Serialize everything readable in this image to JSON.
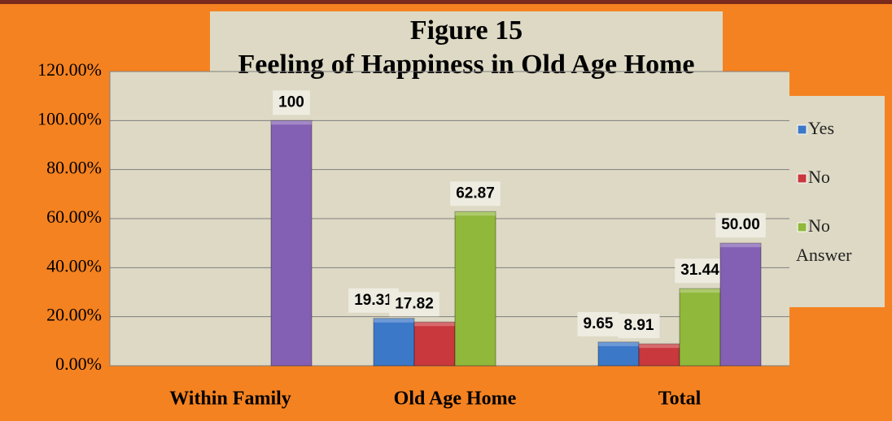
{
  "chart_data": {
    "type": "bar",
    "title": "Figure 15",
    "subtitle": "Feeling of Happiness in Old Age Home",
    "categories": [
      "Within Family",
      "Old Age Home",
      "Total"
    ],
    "series": [
      {
        "name": "Yes",
        "color": "#3c78c8",
        "values": [
          null,
          19.31,
          9.65
        ],
        "value_labels": [
          null,
          "19.31",
          "9.65"
        ]
      },
      {
        "name": "No",
        "color": "#c8383c",
        "values": [
          null,
          17.82,
          8.91
        ],
        "value_labels": [
          null,
          "17.82",
          "8.91"
        ]
      },
      {
        "name": "No Answer",
        "color": "#90b83a",
        "values": [
          null,
          62.87,
          31.44
        ],
        "value_labels": [
          null,
          "62.87",
          "31.44"
        ]
      },
      {
        "color": "#8460b4",
        "values": [
          100,
          null,
          50
        ],
        "value_labels": [
          "100",
          null,
          "50.00"
        ]
      }
    ],
    "ylim": [
      0,
      120
    ],
    "yticks": [
      {
        "value": 0,
        "label": "0.00%"
      },
      {
        "value": 20,
        "label": "20.00%"
      },
      {
        "value": 40,
        "label": "40.00%"
      },
      {
        "value": 60,
        "label": "60.00%"
      },
      {
        "value": 80,
        "label": "80.00%"
      },
      {
        "value": 100,
        "label": "100.00%"
      },
      {
        "value": 120,
        "label": "120.00%"
      }
    ],
    "grid": true,
    "legend": "right"
  }
}
